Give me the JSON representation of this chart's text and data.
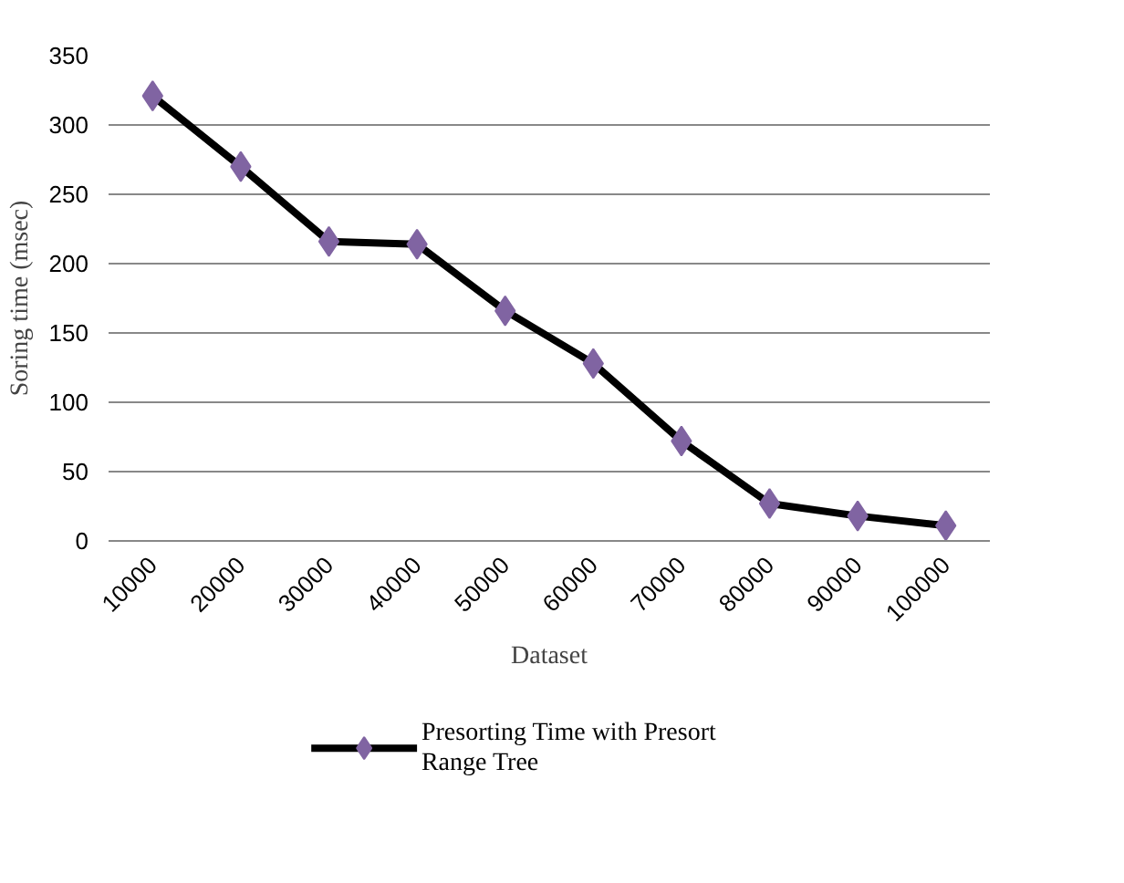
{
  "chart_data": {
    "type": "line",
    "xlabel": "Dataset",
    "ylabel": "Soring time (msec)",
    "categories": [
      "10000",
      "20000",
      "30000",
      "40000",
      "50000",
      "60000",
      "70000",
      "80000",
      "90000",
      "100000"
    ],
    "series": [
      {
        "name": "Presorting Time with Presort Range Tree",
        "color": "#8064a2",
        "values": [
          321,
          270,
          216,
          214,
          166,
          128,
          72,
          27,
          18,
          11
        ]
      }
    ],
    "ylim": [
      0,
      350
    ],
    "yticks": [
      0,
      50,
      100,
      150,
      200,
      250,
      300,
      350
    ],
    "grid": "y",
    "legend": "bottom",
    "marker": "diamond",
    "line_style": "solid"
  }
}
